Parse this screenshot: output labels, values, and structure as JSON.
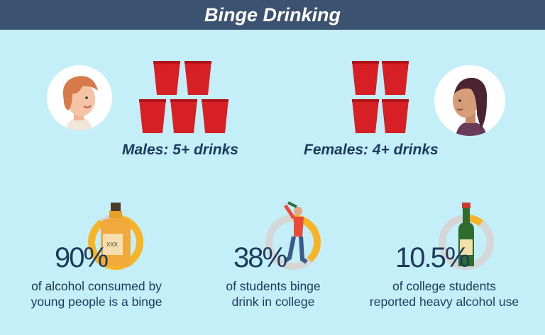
{
  "header": {
    "title": "Binge Drinking"
  },
  "males": {
    "label": "Males: 5+ drinks",
    "cups": 5
  },
  "females": {
    "label": "Females: 4+ drinks",
    "cups": 4
  },
  "stats": [
    {
      "value": "90%",
      "line1": "of alcohol consumed by",
      "line2": "young people is a binge",
      "fraction": 0.9,
      "icon": "whiskey-bottle-icon"
    },
    {
      "value": "38%",
      "line1": "of students binge",
      "line2": "drink in college",
      "fraction": 0.38,
      "icon": "drinking-student-icon"
    },
    {
      "value": "10.5%",
      "line1": "of college students",
      "line2": "reported heavy alcohol use",
      "fraction": 0.105,
      "icon": "wine-bottle-icon"
    }
  ],
  "colors": {
    "header": "#3b5370",
    "background": "#c4eef8",
    "text": "#1c3a5e",
    "cup": "#d71f26",
    "ring_fill": "#f6b529",
    "ring_track": "#d6d6d6"
  }
}
